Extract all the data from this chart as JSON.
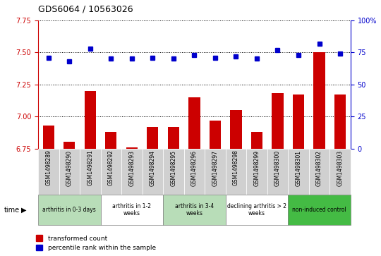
{
  "title": "GDS6064 / 10563026",
  "samples": [
    "GSM1498289",
    "GSM1498290",
    "GSM1498291",
    "GSM1498292",
    "GSM1498293",
    "GSM1498294",
    "GSM1498295",
    "GSM1498296",
    "GSM1498297",
    "GSM1498298",
    "GSM1498299",
    "GSM1498300",
    "GSM1498301",
    "GSM1498302",
    "GSM1498303"
  ],
  "bar_values": [
    6.93,
    6.8,
    7.2,
    6.88,
    6.76,
    6.92,
    6.92,
    7.15,
    6.97,
    7.05,
    6.88,
    7.18,
    7.17,
    7.5,
    7.17
  ],
  "dot_values": [
    71,
    68,
    78,
    70,
    70,
    71,
    70,
    73,
    71,
    72,
    70,
    77,
    73,
    82,
    74
  ],
  "ylim_left": [
    6.75,
    7.75
  ],
  "ylim_right": [
    0,
    100
  ],
  "yticks_left": [
    6.75,
    7.0,
    7.25,
    7.5,
    7.75
  ],
  "yticks_right": [
    0,
    25,
    50,
    75,
    100
  ],
  "bar_color": "#cc0000",
  "dot_color": "#0000cc",
  "bar_bottom": 6.75,
  "groups": [
    {
      "label": "arthritis in 0-3 days",
      "start": 0,
      "end": 3,
      "color": "#b8ddb8"
    },
    {
      "label": "arthritis in 1-2\nweeks",
      "start": 3,
      "end": 6,
      "color": "#ffffff"
    },
    {
      "label": "arthritis in 3-4\nweeks",
      "start": 6,
      "end": 9,
      "color": "#b8ddb8"
    },
    {
      "label": "declining arthritis > 2\nweeks",
      "start": 9,
      "end": 12,
      "color": "#ffffff"
    },
    {
      "label": "non-induced control",
      "start": 12,
      "end": 15,
      "color": "#44bb44"
    }
  ],
  "legend_bar_label": "transformed count",
  "legend_dot_label": "percentile rank within the sample",
  "title_color": "#000000",
  "tick_label_color_left": "#cc0000",
  "tick_label_color_right": "#0000cc",
  "grid_color": "#000000"
}
